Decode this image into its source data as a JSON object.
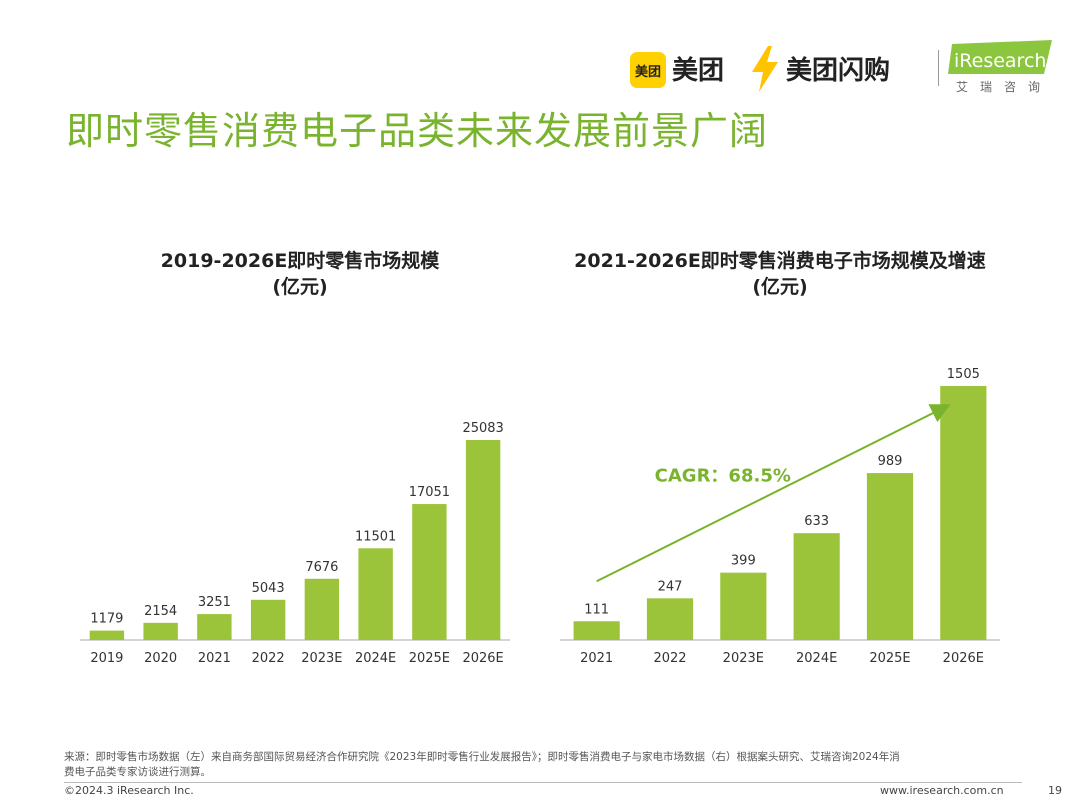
{
  "header": {
    "meituan_badge": "美团",
    "meituan_text": "美团",
    "shangou_text": "美团闪购",
    "iresearch_text": "iResearch",
    "iresearch_sub": "艾瑞咨询",
    "title": "即时零售消费电子品类未来发展前景广阔"
  },
  "colors": {
    "bar": "#9cc43a",
    "accent": "#7ab32e",
    "axis": "#aaaaaa"
  },
  "chart_data": [
    {
      "type": "bar",
      "title_line1": "2019-2026E即时零售市场规模",
      "title_line2": "(亿元)",
      "categories": [
        "2019",
        "2020",
        "2021",
        "2022",
        "2023E",
        "2024E",
        "2025E",
        "2026E"
      ],
      "values": [
        1179,
        2154,
        3251,
        5043,
        7676,
        11501,
        17051,
        25083
      ],
      "value_labels": [
        "1179",
        "2154",
        "3251",
        "5043",
        "7676",
        "11501",
        "17051",
        "25083"
      ],
      "ylim": [
        0,
        25083
      ]
    },
    {
      "type": "bar",
      "title_line1": "2021-2026E即时零售消费电子市场规模及增速",
      "title_line2": "(亿元)",
      "categories": [
        "2021",
        "2022",
        "2023E",
        "2024E",
        "2025E",
        "2026E"
      ],
      "values": [
        111,
        247,
        399,
        633,
        989,
        1505
      ],
      "value_labels": [
        "111",
        "247",
        "399",
        "633",
        "989",
        "1505"
      ],
      "ylim": [
        0,
        1505
      ],
      "annotation": "CAGR：68.5%"
    }
  ],
  "footer": {
    "note_line1": "来源：即时零售市场数据（左）来自商务部国际贸易经济合作研究院《2023年即时零售行业发展报告》；即时零售消费电子与家电市场数据（右）根据案头研究、艾瑞咨询2024年消",
    "note_line2": "费电子品类专家访谈进行测算。",
    "copyright": "©2024.3 iResearch Inc.",
    "site": "www.iresearch.com.cn",
    "page": "19"
  }
}
